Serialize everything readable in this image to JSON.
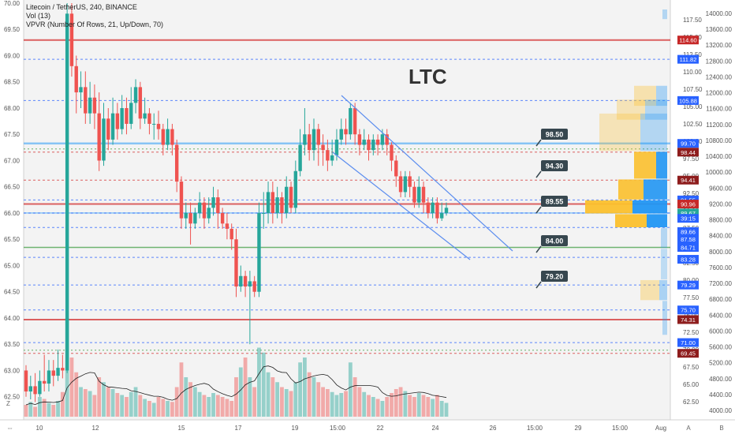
{
  "legend": {
    "symbol": "Litecoin / TetherUS, 240, BINANCE",
    "vol": "Vol (13)",
    "vpvr": "VPVR (Number Of Rows, 21, Up/Down, 70)"
  },
  "annotation_title": "LTC",
  "colors": {
    "up": "#26a69a",
    "down": "#ef5350",
    "red_level": "#d32f2f",
    "blue_level": "#2962ff",
    "green_level": "#43a047",
    "channel": "#5b8def",
    "tag_bg": "#37474f"
  },
  "left_axis": [
    "70.00",
    "69.50",
    "69.00",
    "68.50",
    "68.00",
    "67.50",
    "67.00",
    "66.50",
    "66.00",
    "65.50",
    "65.00",
    "64.50",
    "64.00",
    "63.50",
    "63.00",
    "62.50"
  ],
  "right_axis": [
    "117.50",
    "115.00",
    "112.50",
    "110.00",
    "107.50",
    "105.00",
    "102.50",
    "100.00",
    "97.50",
    "95.00",
    "92.50",
    "90.00",
    "87.50",
    "85.00",
    "82.50",
    "80.00",
    "77.50",
    "75.00",
    "72.50",
    "70.00",
    "67.50",
    "65.00",
    "62.50"
  ],
  "far_right_axis": [
    "14000.00",
    "13600.00",
    "13200.00",
    "12800.00",
    "12400.00",
    "12000.00",
    "11600.00",
    "11200.00",
    "10800.00",
    "10400.00",
    "10000.00",
    "9600.00",
    "9200.00",
    "8800.00",
    "8400.00",
    "8000.00",
    "7600.00",
    "7200.00",
    "6800.00",
    "6400.00",
    "6000.00",
    "5600.00",
    "5200.00",
    "4800.00",
    "4400.00",
    "4000.00"
  ],
  "time_axis": [
    "10",
    "12",
    "15",
    "17",
    "19",
    "15:00",
    "22",
    "24",
    "26",
    "15:00",
    "29",
    "15:00",
    "Aug"
  ],
  "bottom_controls": {
    "zoom_z": "Z",
    "a_btn": "A",
    "b_btn": "B"
  },
  "price_badges": [
    {
      "label": "114.60",
      "kind": "red"
    },
    {
      "label": "111.82",
      "kind": "blue"
    },
    {
      "label": "105.88",
      "kind": "blue"
    },
    {
      "label": "99.70",
      "kind": "blue"
    },
    {
      "label": "98.44",
      "kind": "darkred"
    },
    {
      "label": "94.41",
      "kind": "darkred"
    },
    {
      "label": "91.55",
      "kind": "blue"
    },
    {
      "label": "90.96",
      "kind": "red"
    },
    {
      "label": "89.67",
      "kind": "green"
    },
    {
      "label": "39:15",
      "kind": "blue"
    },
    {
      "label": "89.66",
      "kind": "blue"
    },
    {
      "label": "87.58",
      "kind": "blue"
    },
    {
      "label": "84.71",
      "kind": "blue"
    },
    {
      "label": "83.28",
      "kind": "blue"
    },
    {
      "label": "79.29",
      "kind": "blue"
    },
    {
      "label": "75.70",
      "kind": "blue"
    },
    {
      "label": "74.31",
      "kind": "darkred"
    },
    {
      "label": "71.00",
      "kind": "blue"
    },
    {
      "label": "69.45",
      "kind": "darkred"
    }
  ],
  "level_tags": [
    "98.50",
    "94.30",
    "89.55",
    "84.00",
    "79.20"
  ],
  "chart_data": {
    "type": "candlestick",
    "symbol": "Litecoin / TetherUS",
    "interval": "240",
    "exchange": "BINANCE",
    "y_axis_left": {
      "range": [
        62.3,
        70.0
      ],
      "label": ""
    },
    "y_axis_right": {
      "range": [
        61.0,
        119.0
      ]
    },
    "x_labels": [
      "10",
      "12",
      "15",
      "17",
      "19",
      "15:00",
      "22",
      "24",
      "26",
      "15:00",
      "29",
      "15:00",
      "Aug"
    ],
    "horizontal_levels": [
      114.6,
      111.82,
      105.88,
      99.7,
      98.44,
      94.41,
      91.55,
      90.96,
      89.67,
      89.66,
      87.58,
      84.71,
      83.28,
      79.29,
      75.7,
      74.31,
      71.0,
      69.45
    ],
    "annotations": [
      "LTC",
      "98.50",
      "94.30",
      "89.55",
      "84.00",
      "79.20"
    ],
    "descending_channel": true,
    "grid": false,
    "candles": [
      [
        63.0,
        62.6,
        63.1,
        62.5
      ],
      [
        62.6,
        62.7,
        62.9,
        62.45
      ],
      [
        62.7,
        62.55,
        62.95,
        62.4
      ],
      [
        62.55,
        62.8,
        63.0,
        62.5
      ],
      [
        62.8,
        62.75,
        63.3,
        62.6
      ],
      [
        62.75,
        63.0,
        63.2,
        62.6
      ],
      [
        63.0,
        62.9,
        63.2,
        62.7
      ],
      [
        62.9,
        63.05,
        63.4,
        62.8
      ],
      [
        63.05,
        63.0,
        63.3,
        62.85
      ],
      [
        63.0,
        69.8,
        70.0,
        62.95
      ],
      [
        69.8,
        68.8,
        70.0,
        68.6
      ],
      [
        68.8,
        68.3,
        69.0,
        67.9
      ],
      [
        68.3,
        68.4,
        68.7,
        68.0
      ],
      [
        68.4,
        67.9,
        68.7,
        67.7
      ],
      [
        67.9,
        68.2,
        68.5,
        67.7
      ],
      [
        68.2,
        67.9,
        68.45,
        67.6
      ],
      [
        67.9,
        67.0,
        68.3,
        66.8
      ],
      [
        67.0,
        67.8,
        68.1,
        66.9
      ],
      [
        67.8,
        67.4,
        68.0,
        67.2
      ],
      [
        67.4,
        67.9,
        68.2,
        67.3
      ],
      [
        67.9,
        67.6,
        68.1,
        67.4
      ],
      [
        67.6,
        68.0,
        68.25,
        67.5
      ],
      [
        68.0,
        67.7,
        68.2,
        67.5
      ],
      [
        67.7,
        68.1,
        68.4,
        67.6
      ],
      [
        68.1,
        68.4,
        68.55,
        67.9
      ],
      [
        68.4,
        67.8,
        68.5,
        67.6
      ],
      [
        67.8,
        67.9,
        68.2,
        67.7
      ],
      [
        67.9,
        67.7,
        68.0,
        67.5
      ],
      [
        67.7,
        67.7,
        67.9,
        67.4
      ],
      [
        67.7,
        67.6,
        67.95,
        67.4
      ],
      [
        67.6,
        67.3,
        67.7,
        67.1
      ],
      [
        67.3,
        67.6,
        67.8,
        67.2
      ],
      [
        67.6,
        67.3,
        67.7,
        67.1
      ],
      [
        67.3,
        66.6,
        67.4,
        66.4
      ],
      [
        66.6,
        65.9,
        66.7,
        65.7
      ],
      [
        65.9,
        66.0,
        66.2,
        65.7
      ],
      [
        66.0,
        65.8,
        66.2,
        65.4
      ],
      [
        65.8,
        66.0,
        66.1,
        65.7
      ],
      [
        66.0,
        66.2,
        66.4,
        65.9
      ],
      [
        66.2,
        65.9,
        66.3,
        65.7
      ],
      [
        65.9,
        66.1,
        66.3,
        65.8
      ],
      [
        66.1,
        66.3,
        66.5,
        65.95
      ],
      [
        66.3,
        66.0,
        66.45,
        65.7
      ],
      [
        66.0,
        65.8,
        66.1,
        65.7
      ],
      [
        65.8,
        65.7,
        66.0,
        65.5
      ],
      [
        65.7,
        65.5,
        65.8,
        65.3
      ],
      [
        65.5,
        64.6,
        65.7,
        64.4
      ],
      [
        64.6,
        64.8,
        65.0,
        64.5
      ],
      [
        64.8,
        64.6,
        64.9,
        64.4
      ],
      [
        64.6,
        64.7,
        64.9,
        63.5
      ],
      [
        64.7,
        64.5,
        64.8,
        64.4
      ],
      [
        64.5,
        66.0,
        66.2,
        64.4
      ],
      [
        66.0,
        66.0,
        66.4,
        65.7
      ],
      [
        66.0,
        66.4,
        66.6,
        65.8
      ],
      [
        66.4,
        66.0,
        66.6,
        65.8
      ],
      [
        66.0,
        66.3,
        66.5,
        65.9
      ],
      [
        66.3,
        66.0,
        66.4,
        65.8
      ],
      [
        66.0,
        66.5,
        66.7,
        65.9
      ],
      [
        66.5,
        66.1,
        66.6,
        66.0
      ],
      [
        66.1,
        66.8,
        67.0,
        66.0
      ],
      [
        66.8,
        67.3,
        67.6,
        66.7
      ],
      [
        67.3,
        67.5,
        68.0,
        67.1
      ],
      [
        67.5,
        67.2,
        67.7,
        67.0
      ],
      [
        67.2,
        67.6,
        67.8,
        67.0
      ],
      [
        67.6,
        67.3,
        67.7,
        66.9
      ],
      [
        67.3,
        67.2,
        67.5,
        66.9
      ],
      [
        67.2,
        67.0,
        67.4,
        66.8
      ],
      [
        67.0,
        67.1,
        67.4,
        66.9
      ],
      [
        67.1,
        67.4,
        67.6,
        67.0
      ],
      [
        67.4,
        67.6,
        67.8,
        67.3
      ],
      [
        67.6,
        67.5,
        67.8,
        67.3
      ],
      [
        67.5,
        68.0,
        68.1,
        67.4
      ],
      [
        68.0,
        67.5,
        68.1,
        67.3
      ],
      [
        67.5,
        67.3,
        67.6,
        67.1
      ],
      [
        67.3,
        67.4,
        67.6,
        67.2
      ],
      [
        67.4,
        67.2,
        67.5,
        67.0
      ],
      [
        67.2,
        67.4,
        67.5,
        67.1
      ],
      [
        67.4,
        67.3,
        67.5,
        67.1
      ],
      [
        67.3,
        67.5,
        67.6,
        67.2
      ],
      [
        67.5,
        67.3,
        67.6,
        67.1
      ],
      [
        67.3,
        67.0,
        67.35,
        66.8
      ],
      [
        67.0,
        66.7,
        67.1,
        66.5
      ],
      [
        66.7,
        66.4,
        66.8,
        66.3
      ],
      [
        66.4,
        66.7,
        66.8,
        66.3
      ],
      [
        66.7,
        66.5,
        66.8,
        66.3
      ],
      [
        66.5,
        66.2,
        66.6,
        66.1
      ],
      [
        66.2,
        66.5,
        66.7,
        66.1
      ],
      [
        66.5,
        66.2,
        66.6,
        66.0
      ],
      [
        66.2,
        66.0,
        66.3,
        65.9
      ],
      [
        66.0,
        66.2,
        66.3,
        65.9
      ],
      [
        66.2,
        65.9,
        66.3,
        65.8
      ],
      [
        65.9,
        66.0,
        66.2,
        65.85
      ],
      [
        66.0,
        66.1,
        66.2,
        65.95
      ]
    ],
    "volume": [
      0.12,
      0.15,
      0.1,
      0.2,
      0.18,
      0.14,
      0.12,
      0.16,
      0.25,
      1.0,
      0.6,
      0.45,
      0.3,
      0.28,
      0.26,
      0.22,
      0.4,
      0.35,
      0.3,
      0.28,
      0.24,
      0.22,
      0.2,
      0.25,
      0.3,
      0.22,
      0.18,
      0.16,
      0.14,
      0.2,
      0.18,
      0.16,
      0.15,
      0.3,
      0.55,
      0.4,
      0.35,
      0.3,
      0.25,
      0.22,
      0.2,
      0.24,
      0.22,
      0.2,
      0.18,
      0.16,
      0.4,
      0.5,
      0.6,
      0.4,
      0.3,
      0.7,
      0.65,
      0.45,
      0.4,
      0.35,
      0.3,
      0.28,
      0.26,
      0.35,
      0.55,
      0.6,
      0.45,
      0.4,
      0.35,
      0.3,
      0.28,
      0.25,
      0.22,
      0.24,
      0.26,
      0.55,
      0.4,
      0.3,
      0.25,
      0.22,
      0.2,
      0.18,
      0.16,
      0.2,
      0.24,
      0.28,
      0.3,
      0.26,
      0.22,
      0.2,
      0.24,
      0.22,
      0.2,
      0.18,
      0.22,
      0.16,
      0.14
    ]
  }
}
